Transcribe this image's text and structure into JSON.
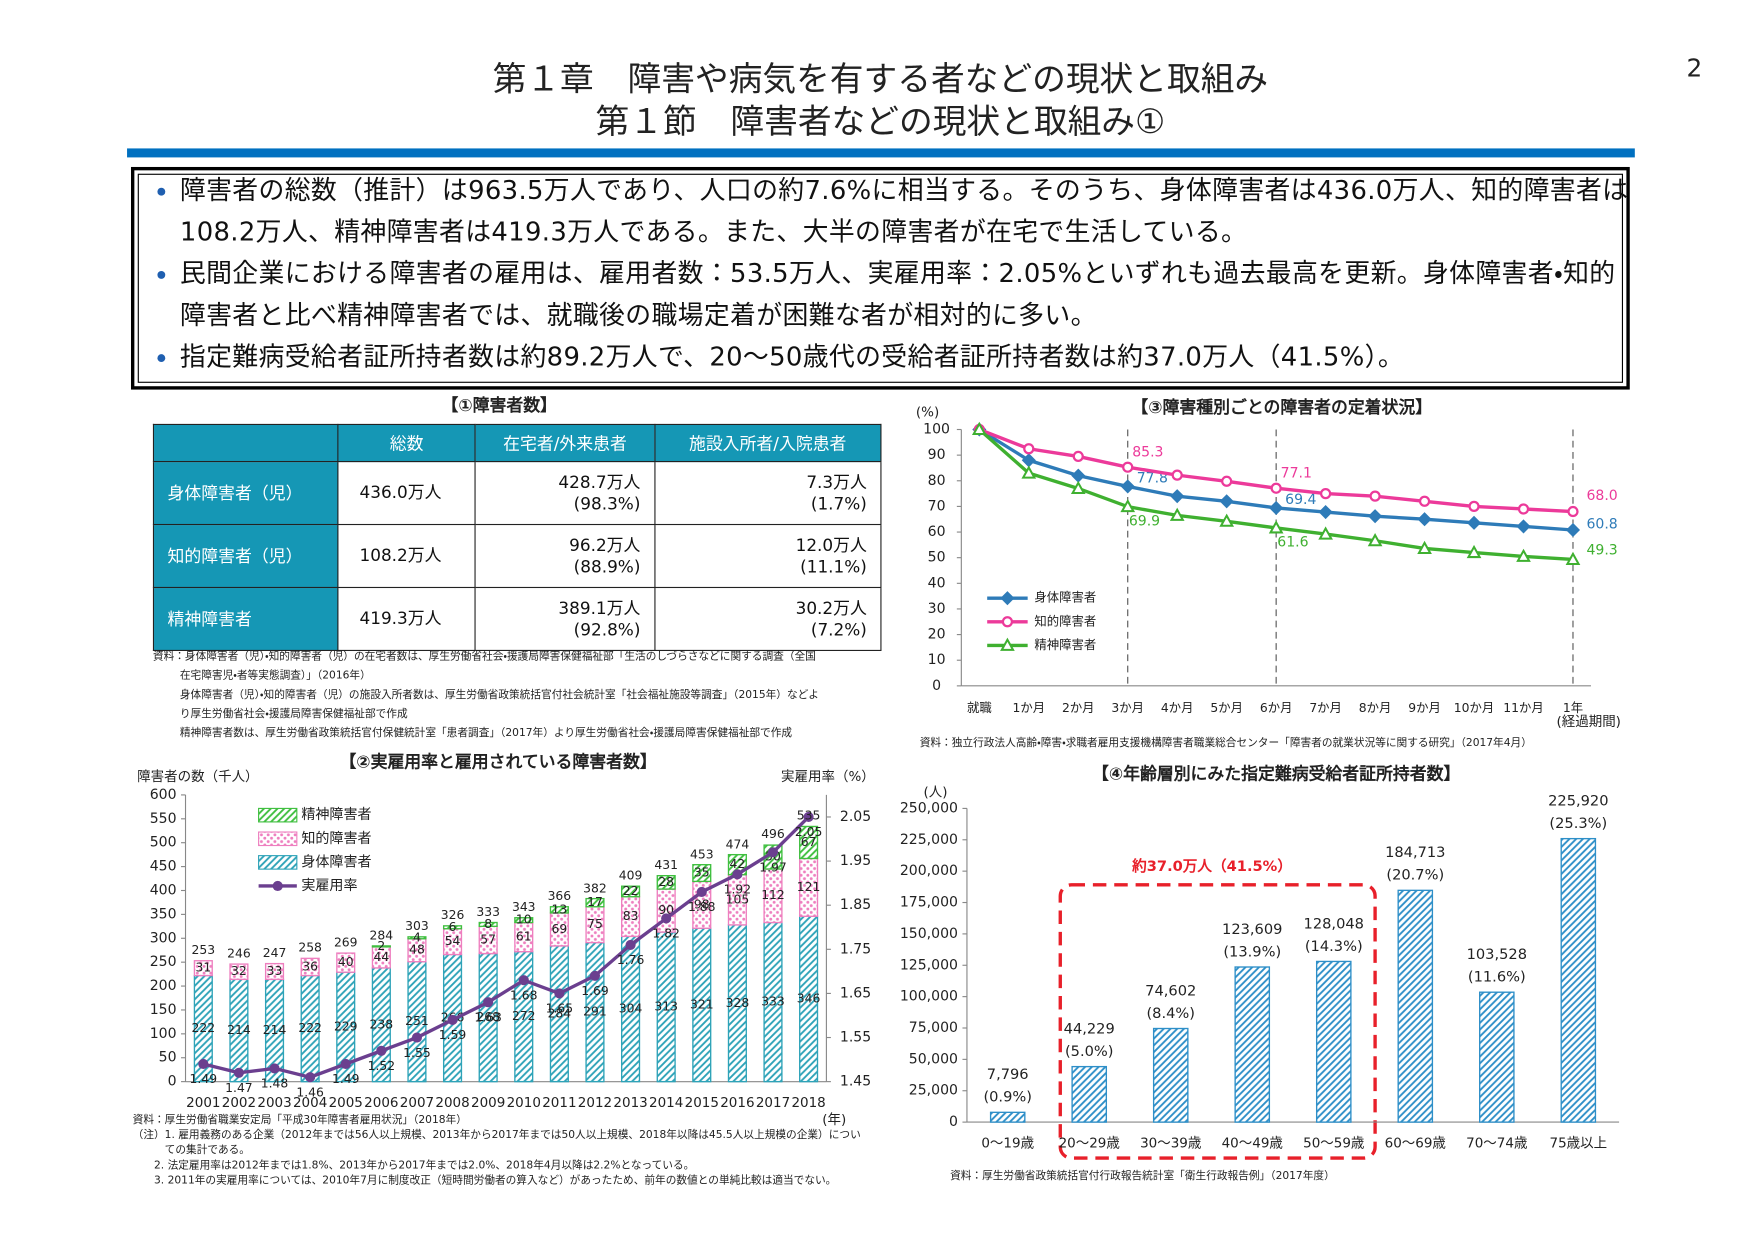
{
  "header": {
    "page_number": "2",
    "title_lines": [
      "第１章　障害や病気を有する者などの現状と取組み",
      "第１節　障害者などの現状と取組み①"
    ]
  },
  "summary": {
    "bullets": [
      "障害者の総数（推計）は963.5万人であり、人口の約7.6%に相当する。そのうち、身体障害者は436.0万人、知的障害者は108.2万人、精神障害者は419.3万人である。また、大半の障害者が在宅で生活している。",
      "民間企業における障害者の雇用は、雇用者数：53.5万人、実雇用率：2.05%といずれも過去最高を更新。身体障害者・知的障害者と比べ精神障害者では、就職後の職場定着が困難な者が相対的に多い。",
      "指定難病受給者証所持者数は約89.2万人で、20〜50歳代の受給者証所持者数は約37.0万人（41.5%）。"
    ]
  },
  "table": {
    "title": "【①障害者数】",
    "columns": [
      "総数",
      "在宅者/外来患者",
      "施設入所者/入院患者"
    ],
    "rows": [
      {
        "label": "身体障害者（児）",
        "total": "436.0万人",
        "home": [
          "428.7万人",
          "(98.3%)"
        ],
        "facility": [
          "7.3万人",
          "(1.7%)"
        ]
      },
      {
        "label": "知的障害者（児）",
        "total": "108.2万人",
        "home": [
          "96.2万人",
          "(88.9%)"
        ],
        "facility": [
          "12.0万人",
          "(11.1%)"
        ]
      },
      {
        "label": "精神障害者",
        "total": "419.3万人",
        "home": [
          "389.1万人",
          "(92.8%)"
        ],
        "facility": [
          "30.2万人",
          "(7.2%)"
        ]
      }
    ],
    "notes": [
      "資料：身体障害者（児）・知的障害者（児）の在宅者数は、厚生労働省社会・援護局障害保健福祉部「生活のしづらさなどに関する調査（全国",
      "在宅障害児・者等実態調査）」（2016年）",
      "身体障害者（児）・知的障害者（児）の施設入所者数は、厚生労働省政策統括官付社会統計室「社会福祉施設等調査」（2015年）などよ",
      "り厚生労働省社会・援護局障害保健福祉部で作成",
      "精神障害者数は、厚生労働省政策統括官付保健統計室「患者調査」（2017年）より厚生労働省社会・援護局障害保健福祉部で作成"
    ]
  },
  "chart_data": [
    {
      "type": "bar",
      "stacked": true,
      "title": "【②実雇用率と雇用されている障害者数】",
      "y_label": "障害者の数（千人）",
      "y2_label": "実雇用率（%）",
      "x_unit": "(年)",
      "categories": [
        "2001",
        "2002",
        "2003",
        "2004",
        "2005",
        "2006",
        "2007",
        "2008",
        "2009",
        "2010",
        "2011",
        "2012",
        "2013",
        "2014",
        "2015",
        "2016",
        "2017",
        "2018"
      ],
      "series": [
        {
          "name": "身体障害者",
          "color": "#2ea3b8",
          "pattern": "hatch",
          "values": [
            222,
            214,
            214,
            222,
            229,
            238,
            251,
            266,
            268,
            272,
            284,
            291,
            304,
            313,
            321,
            328,
            333,
            346
          ]
        },
        {
          "name": "知的障害者",
          "color": "#ee7fbf",
          "pattern": "dots",
          "values": [
            31,
            32,
            33,
            36,
            40,
            44,
            48,
            54,
            57,
            61,
            69,
            75,
            83,
            90,
            98,
            105,
            112,
            121
          ]
        },
        {
          "name": "精神障害者",
          "color": "#3fbf3f",
          "pattern": "hatch",
          "values": [
            null,
            null,
            null,
            null,
            null,
            2,
            4,
            6,
            8,
            10,
            13,
            17,
            22,
            28,
            35,
            42,
            50,
            67
          ]
        },
        {
          "name": "実雇用率",
          "color": "#6b3f8f",
          "type": "line",
          "axis": "y2",
          "values": [
            1.49,
            1.47,
            1.48,
            1.46,
            1.49,
            1.52,
            1.55,
            1.59,
            1.63,
            1.68,
            1.65,
            1.69,
            1.76,
            1.82,
            1.88,
            1.92,
            1.97,
            2.05
          ]
        }
      ],
      "totals": [
        253,
        246,
        247,
        258,
        269,
        284,
        303,
        326,
        333,
        343,
        366,
        382,
        409,
        431,
        453,
        474,
        496,
        535
      ],
      "ylim": [
        0,
        600
      ],
      "yticks": [
        0,
        50,
        100,
        150,
        200,
        250,
        300,
        350,
        400,
        450,
        500,
        550,
        600
      ],
      "y2lim": [
        1.45,
        2.1
      ],
      "y2ticks": [
        1.45,
        1.55,
        1.65,
        1.75,
        1.85,
        1.95,
        2.05
      ],
      "grid": false,
      "notes": [
        "資料：厚生労働省職業安定局「平成30年障害者雇用状況」（2018年）",
        "（注）1. 雇用義務のある企業（2012年までは56人以上規模、2013年から2017年までは50人以上規模、2018年以降は45.5人以上規模の企業）につい",
        "　　　ての集計である。",
        "　　2. 法定雇用率は2012年までは1.8%、2013年から2017年までは2.0%、2018年4月以降は2.2%となっている。",
        "　　3. 2011年の実雇用率については、2010年7月に制度改正（短時間労働者の算入など）があったため、前年の数値との単純比較は適当でない。"
      ]
    },
    {
      "type": "line",
      "title": "【③障害種別ごとの障害者の定着状況】",
      "y_unit": "(%)",
      "x_note": "(経過期間)",
      "categories": [
        "就職",
        "1か月",
        "2か月",
        "3か月",
        "4か月",
        "5か月",
        "6か月",
        "7か月",
        "8か月",
        "9か月",
        "10か月",
        "11か月",
        "1年"
      ],
      "series": [
        {
          "name": "身体障害者",
          "color": "#2e7bb8",
          "marker": "diamond",
          "values": [
            100,
            88,
            82,
            77.8,
            74,
            72,
            69.4,
            67.8,
            66.2,
            65,
            63.6,
            62.2,
            60.8
          ],
          "value_labels": [
            null,
            null,
            null,
            "77.8",
            null,
            null,
            "69.4",
            null,
            null,
            null,
            null,
            null,
            "60.8"
          ]
        },
        {
          "name": "知的障害者",
          "color": "#ec3a9a",
          "marker": "circle",
          "values": [
            100,
            92.5,
            89.5,
            85.3,
            82.2,
            79.8,
            77.1,
            75,
            74,
            72,
            70,
            69,
            68.0
          ],
          "value_labels": [
            null,
            null,
            null,
            "85.3",
            null,
            null,
            "77.1",
            null,
            null,
            null,
            null,
            null,
            "68.0"
          ]
        },
        {
          "name": "精神障害者",
          "color": "#3fb030",
          "marker": "triangle",
          "values": [
            100,
            83,
            77,
            69.9,
            66.5,
            64.2,
            61.6,
            59.2,
            56.6,
            53.6,
            52,
            50.5,
            49.3
          ],
          "value_labels": [
            null,
            null,
            null,
            "69.9",
            null,
            null,
            "61.6",
            null,
            null,
            null,
            null,
            null,
            "49.3"
          ]
        }
      ],
      "ylim": [
        0,
        100
      ],
      "yticks": [
        0,
        10,
        20,
        30,
        40,
        50,
        60,
        70,
        80,
        90,
        100
      ],
      "grid": false,
      "notes": [
        "資料：独立行政法人高齢・障害・求職者雇用支援機構障害者職業総合センター「障害者の就業状況等に関する研究」（2017年4月）"
      ]
    },
    {
      "type": "bar",
      "title": "【④年齢層別にみた指定難病受給者証所持者数】",
      "y_unit": "(人)",
      "annotation": "約37.0万人（41.5%）",
      "categories": [
        "0〜19歳",
        "20〜29歳",
        "30〜39歳",
        "40〜49歳",
        "50〜59歳",
        "60〜69歳",
        "70〜74歳",
        "75歳以上"
      ],
      "values": [
        7796,
        44229,
        74602,
        123609,
        128048,
        184713,
        103528,
        225920
      ],
      "value_labels": [
        "7,796",
        "44,229",
        "74,602",
        "123,609",
        "128,048",
        "184,713",
        "103,528",
        "225,920"
      ],
      "share_labels": [
        "(0.9%)",
        "(5.0%)",
        "(8.4%)",
        "(13.9%)",
        "(14.3%)",
        "(20.7%)",
        "(11.6%)",
        "(25.3%)"
      ],
      "color": "#2e8fc8",
      "pattern": "hatch",
      "ylim": [
        0,
        250000
      ],
      "yticks": [
        0,
        {
          "value": 25000,
          "label": "25,000"
        },
        {
          "value": 50000,
          "label": "50,000"
        },
        {
          "value": 75000,
          "label": "75,000"
        },
        {
          "value": 100000,
          "label": "100,000"
        },
        {
          "value": 125000,
          "label": "125,000"
        },
        {
          "value": 150000,
          "label": "150,000"
        },
        {
          "value": 175000,
          "label": "175,000"
        },
        {
          "value": 200000,
          "label": "200,000"
        },
        {
          "value": 225000,
          "label": "225,000"
        },
        {
          "value": 250000,
          "label": "250,000"
        }
      ],
      "grid": false,
      "notes": [
        "資料：厚生労働省政策統括官付行政報告統計室「衛生行政報告例」（2017年度）"
      ]
    }
  ]
}
